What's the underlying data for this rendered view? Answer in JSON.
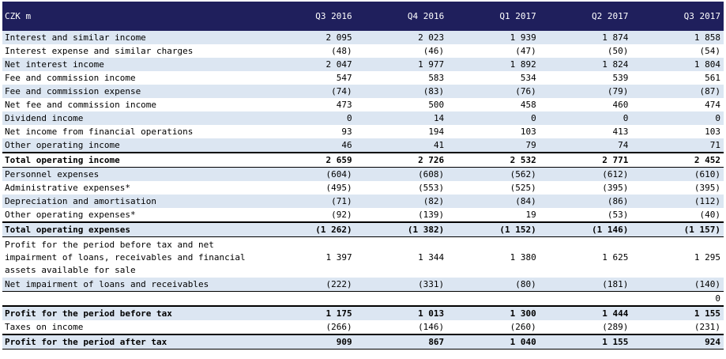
{
  "table": {
    "header": [
      "CZK m",
      "Q3 2016",
      "Q4 2016",
      "Q1 2017",
      "Q2 2017",
      "Q3 2017"
    ],
    "rows": [
      {
        "label": "Interest and similar income",
        "values": [
          "2 095",
          "2 023",
          "1 939",
          "1 874",
          "1 858"
        ]
      },
      {
        "label": "Interest expense and similar charges",
        "values": [
          "(48)",
          "(46)",
          "(47)",
          "(50)",
          "(54)"
        ]
      },
      {
        "label": "Net interest income",
        "values": [
          "2 047",
          "1 977",
          "1 892",
          "1 824",
          "1 804"
        ]
      },
      {
        "label": "Fee and commission income",
        "values": [
          "547",
          "583",
          "534",
          "539",
          "561"
        ]
      },
      {
        "label": "Fee and commission expense",
        "values": [
          "(74)",
          "(83)",
          "(76)",
          "(79)",
          "(87)"
        ]
      },
      {
        "label": "Net fee and commission income",
        "values": [
          "473",
          "500",
          "458",
          "460",
          "474"
        ]
      },
      {
        "label": "Dividend income",
        "values": [
          "0",
          "14",
          "0",
          "0",
          "0"
        ]
      },
      {
        "label": "Net income from financial operations",
        "values": [
          "93",
          "194",
          "103",
          "413",
          "103"
        ]
      },
      {
        "label": "Other operating income",
        "values": [
          "46",
          "41",
          "79",
          "74",
          "71"
        ]
      },
      {
        "label": "Total operating income",
        "values": [
          "2 659",
          "2 726",
          "2 532",
          "2 771",
          "2 452"
        ]
      },
      {
        "label": "Personnel expenses",
        "values": [
          "(604)",
          "(608)",
          "(562)",
          "(612)",
          "(610)"
        ]
      },
      {
        "label": "Administrative expenses*",
        "values": [
          "(495)",
          "(553)",
          "(525)",
          "(395)",
          "(395)"
        ]
      },
      {
        "label": "Depreciation and amortisation",
        "values": [
          "(71)",
          "(82)",
          "(84)",
          "(86)",
          "(112)"
        ]
      },
      {
        "label": "Other operating expenses*",
        "values": [
          "(92)",
          "(139)",
          "19",
          "(53)",
          "(40)"
        ]
      },
      {
        "label": "Total operating expenses",
        "values": [
          "(1 262)",
          "(1 382)",
          "(1 152)",
          "(1 146)",
          "(1 157)"
        ]
      },
      {
        "label": "Profit for the period before tax and net impairment of loans, receivables and financial assets available for sale",
        "values": [
          "1 397",
          "1 344",
          "1 380",
          "1 625",
          "1 295"
        ]
      },
      {
        "label": "Net impairment of loans and receivables",
        "values": [
          "(222)",
          "(331)",
          "(80)",
          "(181)",
          "(140)"
        ]
      },
      {
        "label": "",
        "values": [
          "",
          "",
          "",
          "",
          "0"
        ]
      },
      {
        "label": "Profit for the period before tax",
        "values": [
          "1 175",
          "1 013",
          "1 300",
          "1 444",
          "1 155"
        ]
      },
      {
        "label": "Taxes on income",
        "values": [
          "(266)",
          "(146)",
          "(260)",
          "(289)",
          "(231)"
        ]
      },
      {
        "label": "Profit for the period after tax",
        "values": [
          "909",
          "867",
          "1 040",
          "1 155",
          "924"
        ]
      }
    ]
  }
}
